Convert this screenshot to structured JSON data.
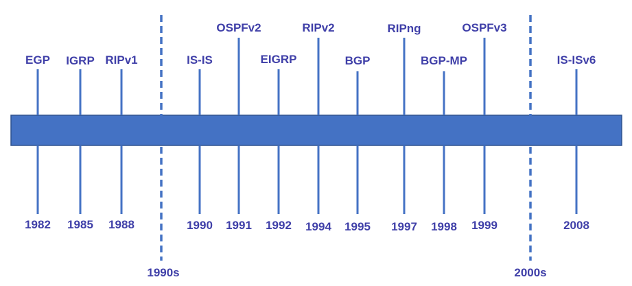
{
  "colors": {
    "bar_fill": "#4472C4",
    "bar_stroke": "#2F528F",
    "line": "#4472C4",
    "text": "#3F3FA8"
  },
  "decades": [
    {
      "label": "1990s"
    },
    {
      "label": "2000s"
    }
  ],
  "events": [
    {
      "protocol": "EGP",
      "year": "1982"
    },
    {
      "protocol": "IGRP",
      "year": "1985"
    },
    {
      "protocol": "RIPv1",
      "year": "1988"
    },
    {
      "protocol": "IS-IS",
      "year": "1990"
    },
    {
      "protocol": "OSPFv2",
      "year": "1991"
    },
    {
      "protocol": "EIGRP",
      "year": "1992"
    },
    {
      "protocol": "RIPv2",
      "year": "1994"
    },
    {
      "protocol": "BGP",
      "year": "1995"
    },
    {
      "protocol": "RIPng",
      "year": "1997"
    },
    {
      "protocol": "BGP-MP",
      "year": "1998"
    },
    {
      "protocol": "OSPFv3",
      "year": "1999"
    },
    {
      "protocol": "IS-ISv6",
      "year": "2008"
    }
  ]
}
